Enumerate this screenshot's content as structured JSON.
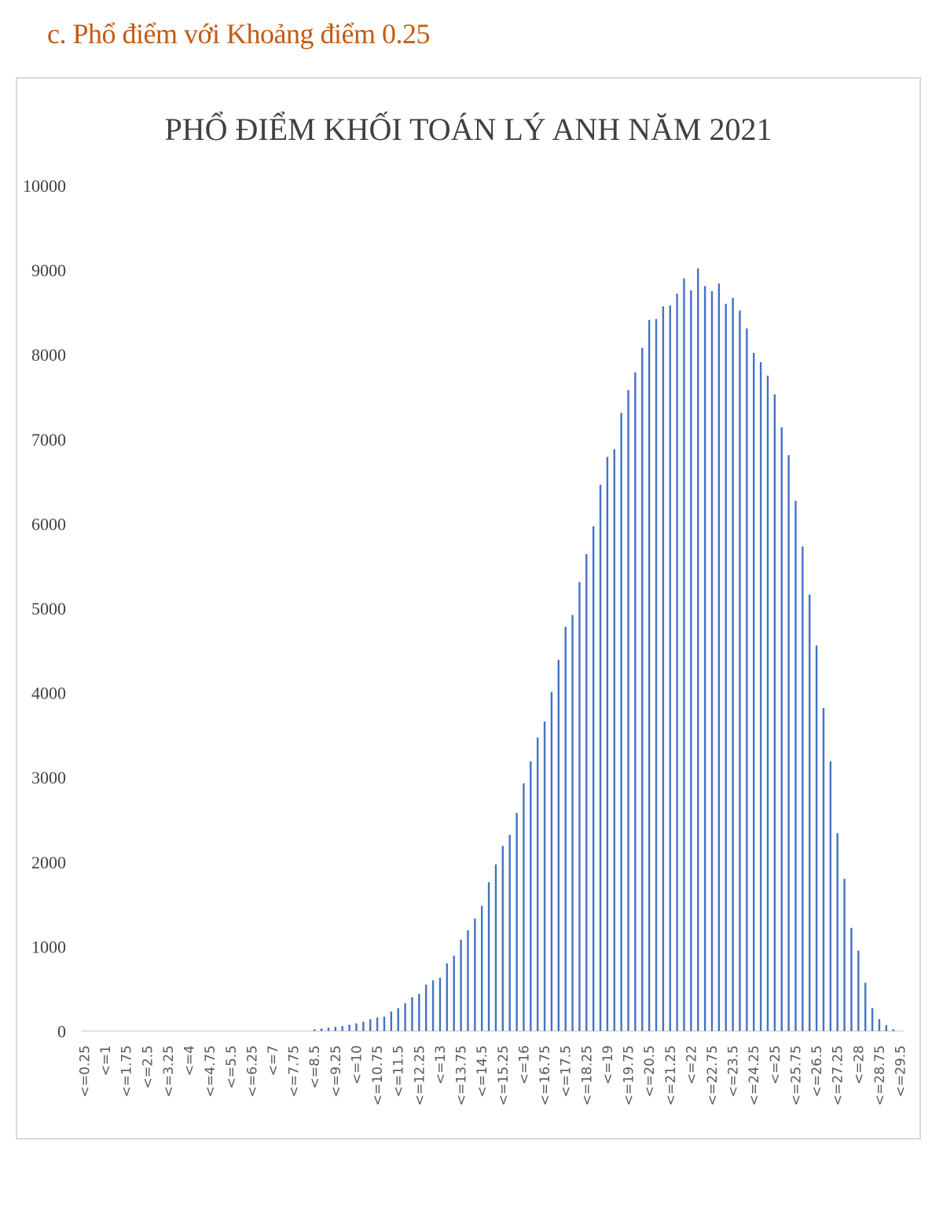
{
  "heading": "c.  Phổ điểm với Khoảng điểm 0.25",
  "chart_data": {
    "type": "bar",
    "title": "PHỔ ĐIỂM KHỐI TOÁN LÝ ANH  NĂM 2021",
    "xlabel": "",
    "ylabel": "",
    "ylim": [
      0,
      10000
    ],
    "yticks": [
      0,
      1000,
      2000,
      3000,
      4000,
      5000,
      6000,
      7000,
      8000,
      9000,
      10000
    ],
    "grid": false,
    "bar_color": "#4472c4",
    "categories": [
      "<=0.25",
      "<=0.5",
      "<=0.75",
      "<=1",
      "<=1.25",
      "<=1.5",
      "<=1.75",
      "<=2",
      "<=2.25",
      "<=2.5",
      "<=2.75",
      "<=3",
      "<=3.25",
      "<=3.5",
      "<=3.75",
      "<=4",
      "<=4.25",
      "<=4.5",
      "<=4.75",
      "<=5",
      "<=5.25",
      "<=5.5",
      "<=5.75",
      "<=6",
      "<=6.25",
      "<=6.5",
      "<=6.75",
      "<=7",
      "<=7.25",
      "<=7.5",
      "<=7.75",
      "<=8",
      "<=8.25",
      "<=8.5",
      "<=8.75",
      "<=9",
      "<=9.25",
      "<=9.5",
      "<=9.75",
      "<=10",
      "<=10.25",
      "<=10.5",
      "<=10.75",
      "<=11",
      "<=11.25",
      "<=11.5",
      "<=11.75",
      "<=12",
      "<=12.25",
      "<=12.5",
      "<=12.75",
      "<=13",
      "<=13.25",
      "<=13.5",
      "<=13.75",
      "<=14",
      "<=14.25",
      "<=14.5",
      "<=14.75",
      "<=15",
      "<=15.25",
      "<=15.5",
      "<=15.75",
      "<=16",
      "<=16.25",
      "<=16.5",
      "<=16.75",
      "<=17",
      "<=17.25",
      "<=17.5",
      "<=17.75",
      "<=18",
      "<=18.25",
      "<=18.5",
      "<=18.75",
      "<=19",
      "<=19.25",
      "<=19.5",
      "<=19.75",
      "<=20",
      "<=20.25",
      "<=20.5",
      "<=20.75",
      "<=21",
      "<=21.25",
      "<=21.5",
      "<=21.75",
      "<=22",
      "<=22.25",
      "<=22.5",
      "<=22.75",
      "<=23",
      "<=23.25",
      "<=23.5",
      "<=23.75",
      "<=24",
      "<=24.25",
      "<=24.5",
      "<=24.75",
      "<=25",
      "<=25.25",
      "<=25.5",
      "<=25.75",
      "<=26",
      "<=26.25",
      "<=26.5",
      "<=26.75",
      "<=27",
      "<=27.25",
      "<=27.5",
      "<=27.75",
      "<=28",
      "<=28.25",
      "<=28.5",
      "<=28.75",
      "<=29",
      "<=29.25",
      "<=29.5"
    ],
    "values": [
      0,
      0,
      0,
      0,
      0,
      0,
      0,
      0,
      0,
      0,
      0,
      0,
      0,
      0,
      0,
      0,
      0,
      0,
      0,
      0,
      0,
      0,
      0,
      0,
      0,
      0,
      0,
      0,
      0,
      0,
      0,
      0,
      0,
      20,
      30,
      40,
      50,
      60,
      75,
      90,
      110,
      140,
      160,
      170,
      230,
      270,
      330,
      400,
      440,
      550,
      600,
      630,
      800,
      890,
      1080,
      1190,
      1330,
      1480,
      1760,
      1970,
      2190,
      2320,
      2580,
      2930,
      3190,
      3470,
      3660,
      4010,
      4390,
      4780,
      4920,
      5310,
      5640,
      5970,
      6460,
      6790,
      6880,
      7310,
      7580,
      7790,
      8080,
      8410,
      8420,
      8570,
      8580,
      8720,
      8900,
      8760,
      9020,
      8810,
      8750,
      8840,
      8600,
      8670,
      8520,
      8310,
      8020,
      7910,
      7750,
      7530,
      7140,
      6810,
      6270,
      5730,
      5160,
      4560,
      3820,
      3190,
      2340,
      1800,
      1220,
      950,
      570,
      270,
      140,
      70,
      20,
      0
    ]
  }
}
